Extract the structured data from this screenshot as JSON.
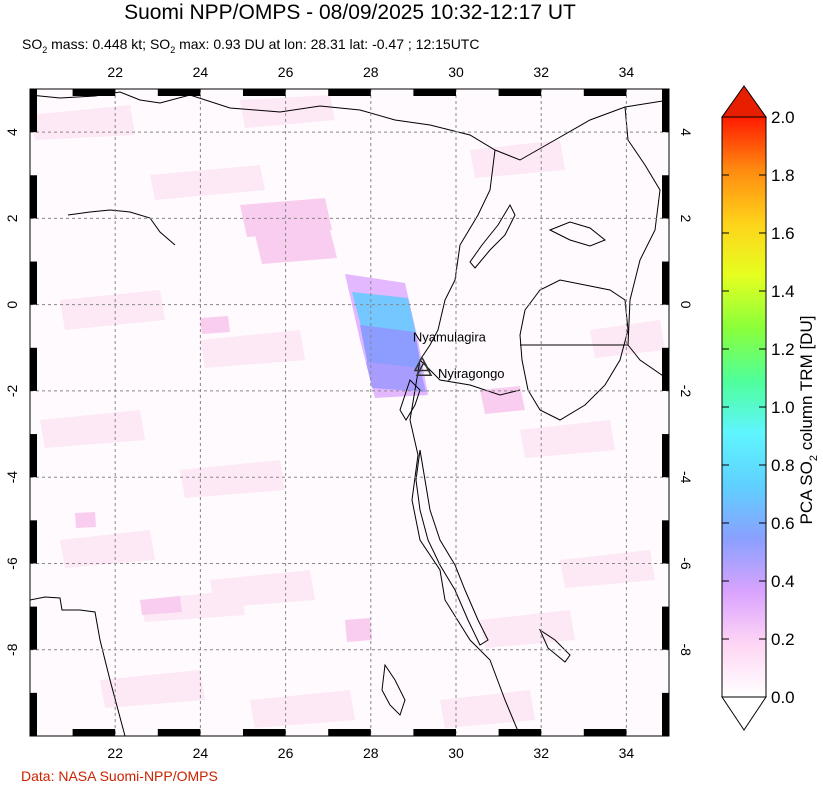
{
  "title": "Suomi NPP/OMPS - 08/09/2025 10:32-12:17 UT",
  "subtitle": {
    "mass_label_a": "SO",
    "mass_sub": "2",
    "mass_label_b": " mass: 0.448 kt; SO",
    "max_sub": "2",
    "max_text": " max: 0.93 DU at lon: 28.31 lat: -0.47 ; 12:15UTC"
  },
  "credit": "Data: NASA Suomi-NPP/OMPS",
  "map": {
    "lon_ticks": [
      "22",
      "24",
      "26",
      "28",
      "30",
      "32",
      "34"
    ],
    "lat_ticks": [
      "4",
      "2",
      "0",
      "-2",
      "-4",
      "-6",
      "-8"
    ],
    "lon_values": [
      22,
      24,
      26,
      28,
      30,
      32,
      34
    ],
    "lat_values": [
      4,
      2,
      0,
      -2,
      -4,
      -6,
      -8
    ],
    "lon_range": [
      20,
      35
    ],
    "lat_range": [
      -10,
      5
    ],
    "volcanoes": [
      {
        "name": "Nyamulagira",
        "lon": 29.2,
        "lat": -1.41
      },
      {
        "name": "Nyiragongo",
        "lon": 29.25,
        "lat": -1.52
      }
    ]
  },
  "colorbar": {
    "label": "PCA SO2 column TRM [DU]",
    "label_a": "PCA SO",
    "label_sub": "2",
    "label_b": " column TRM [DU]",
    "ticks": [
      "2.0",
      "1.8",
      "1.6",
      "1.4",
      "1.2",
      "1.0",
      "0.8",
      "0.6",
      "0.4",
      "0.2",
      "0.0"
    ],
    "range": [
      0.0,
      2.0
    ],
    "colors": [
      "#ffffff",
      "#ffd6f5",
      "#d9a3ff",
      "#8aa0ff",
      "#5fd0ff",
      "#5ff5ff",
      "#4fff9a",
      "#8aff3a",
      "#e6ff20",
      "#ffd21a",
      "#ff8a10",
      "#ff1a00"
    ]
  }
}
